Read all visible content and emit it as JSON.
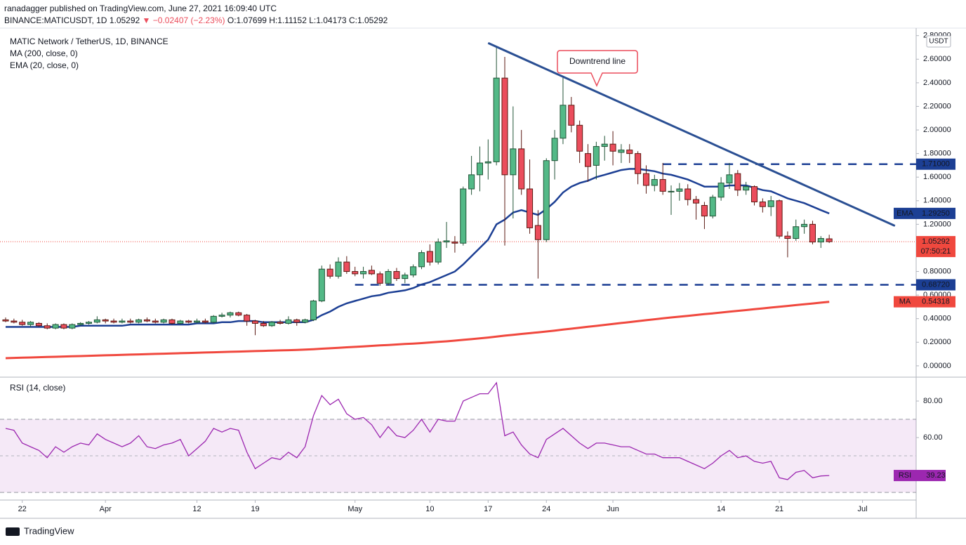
{
  "header": {
    "publisher": "ranadagger published on TradingView.com, June 27, 2021 16:09:40 UTC",
    "symbol": "BINANCE:MATICUSDT, 1D",
    "price": "1.05292",
    "arrow": "▼",
    "change": "−0.02407 (−2.23%)",
    "open": "O:1.07699",
    "high": "H:1.11152",
    "low": "L:1.04173",
    "close": "C:1.05292"
  },
  "footer": "TradingView",
  "chart_data": [
    {
      "type": "candlestick",
      "title": "MATIC Network / TetherUS, 1D, BINANCE",
      "currency": "USDT",
      "up_color": "#53b987",
      "down_color": "#eb4d5c",
      "xlim": [
        -0.675,
        109.45
      ],
      "ylim": [
        -0.09,
        2.84
      ],
      "yticks": [
        {
          "value": 0,
          "label": "0.00000"
        },
        {
          "value": 0.2,
          "label": "0.20000"
        },
        {
          "value": 0.4,
          "label": "0.40000"
        },
        {
          "value": 0.6,
          "label": "0.60000"
        },
        {
          "value": 0.8,
          "label": "0.80000"
        },
        {
          "value": 1,
          "label": "1.00000"
        },
        {
          "value": 1.2,
          "label": "1.20000"
        },
        {
          "value": 1.4,
          "label": "1.40000"
        },
        {
          "value": 1.6,
          "label": "1.60000"
        },
        {
          "value": 1.8,
          "label": "1.80000"
        },
        {
          "value": 2,
          "label": "2.00000"
        },
        {
          "value": 2.2,
          "label": "2.20000"
        },
        {
          "value": 2.4,
          "label": "2.40000"
        },
        {
          "value": 2.6,
          "label": "2.60000"
        },
        {
          "value": 2.8,
          "label": "2.80000"
        }
      ],
      "candles": [
        [
          0.39,
          0.41,
          0.37,
          0.38
        ],
        [
          0.38,
          0.4,
          0.36,
          0.37
        ],
        [
          0.37,
          0.39,
          0.34,
          0.35
        ],
        [
          0.35,
          0.38,
          0.33,
          0.37
        ],
        [
          0.36,
          0.37,
          0.33,
          0.34
        ],
        [
          0.34,
          0.36,
          0.31,
          0.32
        ],
        [
          0.32,
          0.36,
          0.31,
          0.35
        ],
        [
          0.35,
          0.36,
          0.31,
          0.32
        ],
        [
          0.32,
          0.36,
          0.31,
          0.35
        ],
        [
          0.35,
          0.37,
          0.34,
          0.36
        ],
        [
          0.36,
          0.38,
          0.35,
          0.37
        ],
        [
          0.37,
          0.42,
          0.36,
          0.39
        ],
        [
          0.39,
          0.4,
          0.36,
          0.38
        ],
        [
          0.38,
          0.4,
          0.36,
          0.37
        ],
        [
          0.37,
          0.4,
          0.36,
          0.38
        ],
        [
          0.38,
          0.4,
          0.36,
          0.37
        ],
        [
          0.37,
          0.4,
          0.36,
          0.39
        ],
        [
          0.39,
          0.41,
          0.37,
          0.38
        ],
        [
          0.38,
          0.4,
          0.36,
          0.37
        ],
        [
          0.37,
          0.4,
          0.36,
          0.39
        ],
        [
          0.39,
          0.4,
          0.35,
          0.36
        ],
        [
          0.36,
          0.39,
          0.35,
          0.38
        ],
        [
          0.38,
          0.39,
          0.36,
          0.37
        ],
        [
          0.37,
          0.4,
          0.36,
          0.38
        ],
        [
          0.38,
          0.4,
          0.36,
          0.37
        ],
        [
          0.37,
          0.43,
          0.36,
          0.42
        ],
        [
          0.42,
          0.45,
          0.41,
          0.43
        ],
        [
          0.43,
          0.46,
          0.41,
          0.45
        ],
        [
          0.45,
          0.46,
          0.42,
          0.43
        ],
        [
          0.43,
          0.44,
          0.34,
          0.38
        ],
        [
          0.38,
          0.39,
          0.26,
          0.36
        ],
        [
          0.36,
          0.38,
          0.33,
          0.34
        ],
        [
          0.34,
          0.38,
          0.33,
          0.37
        ],
        [
          0.37,
          0.39,
          0.35,
          0.36
        ],
        [
          0.36,
          0.42,
          0.35,
          0.39
        ],
        [
          0.39,
          0.4,
          0.34,
          0.37
        ],
        [
          0.37,
          0.4,
          0.36,
          0.39
        ],
        [
          0.39,
          0.56,
          0.38,
          0.55
        ],
        [
          0.55,
          0.85,
          0.54,
          0.82
        ],
        [
          0.82,
          0.86,
          0.74,
          0.76
        ],
        [
          0.76,
          0.92,
          0.74,
          0.88
        ],
        [
          0.88,
          0.93,
          0.78,
          0.8
        ],
        [
          0.8,
          0.84,
          0.76,
          0.78
        ],
        [
          0.78,
          0.84,
          0.74,
          0.8
        ],
        [
          0.81,
          0.85,
          0.77,
          0.78
        ],
        [
          0.78,
          0.8,
          0.68,
          0.7
        ],
        [
          0.7,
          0.82,
          0.68,
          0.8
        ],
        [
          0.8,
          0.83,
          0.72,
          0.74
        ],
        [
          0.74,
          0.79,
          0.7,
          0.77
        ],
        [
          0.77,
          0.86,
          0.75,
          0.84
        ],
        [
          0.84,
          0.98,
          0.82,
          0.96
        ],
        [
          0.97,
          1.03,
          0.85,
          0.88
        ],
        [
          0.88,
          1.08,
          0.86,
          1.05
        ],
        [
          1.05,
          1.22,
          1.0,
          1.06
        ],
        [
          1.05,
          1.1,
          0.96,
          1.04
        ],
        [
          1.04,
          1.52,
          1.02,
          1.5
        ],
        [
          1.5,
          1.78,
          1.45,
          1.62
        ],
        [
          1.62,
          1.86,
          1.48,
          1.72
        ],
        [
          1.72,
          1.92,
          1.58,
          1.73
        ],
        [
          1.73,
          2.7,
          1.7,
          2.44
        ],
        [
          2.44,
          2.62,
          1.02,
          1.62
        ],
        [
          1.62,
          2.2,
          1.25,
          1.84
        ],
        [
          1.84,
          2.0,
          1.45,
          1.5
        ],
        [
          1.5,
          1.75,
          1.12,
          1.17
        ],
        [
          1.19,
          1.32,
          0.74,
          1.07
        ],
        [
          1.07,
          1.76,
          1.05,
          1.74
        ],
        [
          1.74,
          2.0,
          1.58,
          1.93
        ],
        [
          1.93,
          2.45,
          1.88,
          2.21
        ],
        [
          2.21,
          2.28,
          1.98,
          2.04
        ],
        [
          2.04,
          2.08,
          1.72,
          1.82
        ],
        [
          1.8,
          1.88,
          1.56,
          1.69
        ],
        [
          1.7,
          1.9,
          1.58,
          1.86
        ],
        [
          1.86,
          1.95,
          1.74,
          1.88
        ],
        [
          1.88,
          1.99,
          1.7,
          1.82
        ],
        [
          1.81,
          1.88,
          1.72,
          1.83
        ],
        [
          1.83,
          1.88,
          1.72,
          1.8
        ],
        [
          1.8,
          1.82,
          1.54,
          1.63
        ],
        [
          1.63,
          1.7,
          1.46,
          1.53
        ],
        [
          1.53,
          1.62,
          1.48,
          1.58
        ],
        [
          1.58,
          1.72,
          1.45,
          1.48
        ],
        [
          1.48,
          1.53,
          1.28,
          1.48
        ],
        [
          1.48,
          1.55,
          1.4,
          1.5
        ],
        [
          1.5,
          1.54,
          1.36,
          1.41
        ],
        [
          1.41,
          1.44,
          1.24,
          1.38
        ],
        [
          1.36,
          1.39,
          1.16,
          1.27
        ],
        [
          1.27,
          1.45,
          1.25,
          1.43
        ],
        [
          1.43,
          1.6,
          1.4,
          1.55
        ],
        [
          1.55,
          1.72,
          1.5,
          1.62
        ],
        [
          1.63,
          1.66,
          1.44,
          1.49
        ],
        [
          1.49,
          1.56,
          1.45,
          1.52
        ],
        [
          1.52,
          1.53,
          1.36,
          1.39
        ],
        [
          1.39,
          1.42,
          1.3,
          1.35
        ],
        [
          1.35,
          1.44,
          1.27,
          1.4
        ],
        [
          1.4,
          1.41,
          1.08,
          1.1
        ],
        [
          1.1,
          1.14,
          0.92,
          1.08
        ],
        [
          1.08,
          1.24,
          1.06,
          1.18
        ],
        [
          1.18,
          1.24,
          1.12,
          1.2
        ],
        [
          1.2,
          1.23,
          1.03,
          1.05
        ],
        [
          1.05,
          1.1,
          1.0,
          1.08
        ],
        [
          1.07699,
          1.11152,
          1.04173,
          1.05292
        ]
      ],
      "series": [
        {
          "name": "MA (200, close, 0)",
          "tag": "MA",
          "last_label": "0.54318",
          "color": "#f0483e",
          "values": [
            0.065,
            0.067,
            0.069,
            0.071,
            0.073,
            0.075,
            0.077,
            0.079,
            0.081,
            0.083,
            0.085,
            0.087,
            0.089,
            0.091,
            0.093,
            0.095,
            0.097,
            0.099,
            0.101,
            0.103,
            0.105,
            0.107,
            0.109,
            0.111,
            0.113,
            0.115,
            0.117,
            0.119,
            0.121,
            0.123,
            0.125,
            0.127,
            0.129,
            0.131,
            0.133,
            0.135,
            0.138,
            0.141,
            0.145,
            0.149,
            0.153,
            0.157,
            0.161,
            0.165,
            0.169,
            0.173,
            0.177,
            0.181,
            0.185,
            0.189,
            0.193,
            0.198,
            0.203,
            0.208,
            0.214,
            0.22,
            0.226,
            0.233,
            0.24,
            0.248,
            0.256,
            0.263,
            0.27,
            0.277,
            0.284,
            0.291,
            0.299,
            0.307,
            0.315,
            0.323,
            0.331,
            0.339,
            0.347,
            0.355,
            0.363,
            0.371,
            0.379,
            0.387,
            0.395,
            0.403,
            0.41,
            0.417,
            0.424,
            0.431,
            0.438,
            0.445,
            0.452,
            0.459,
            0.466,
            0.473,
            0.48,
            0.487,
            0.494,
            0.501,
            0.508,
            0.515,
            0.522,
            0.529,
            0.536,
            0.54318
          ]
        },
        {
          "name": "EMA (20, close, 0)",
          "tag": "EMA",
          "last_label": "1.29250",
          "color": "#1c3f94",
          "values": [
            0.33,
            0.33,
            0.33,
            0.33,
            0.33,
            0.33,
            0.33,
            0.33,
            0.33,
            0.34,
            0.34,
            0.34,
            0.34,
            0.34,
            0.34,
            0.35,
            0.35,
            0.35,
            0.35,
            0.35,
            0.35,
            0.35,
            0.35,
            0.36,
            0.36,
            0.36,
            0.37,
            0.37,
            0.38,
            0.38,
            0.38,
            0.37,
            0.37,
            0.37,
            0.37,
            0.37,
            0.37,
            0.39,
            0.43,
            0.46,
            0.5,
            0.53,
            0.55,
            0.57,
            0.59,
            0.6,
            0.62,
            0.63,
            0.64,
            0.66,
            0.69,
            0.71,
            0.74,
            0.77,
            0.8,
            0.86,
            0.93,
            1.0,
            1.07,
            1.2,
            1.24,
            1.3,
            1.32,
            1.3,
            1.28,
            1.33,
            1.39,
            1.47,
            1.52,
            1.55,
            1.57,
            1.6,
            1.62,
            1.64,
            1.66,
            1.67,
            1.67,
            1.66,
            1.65,
            1.63,
            1.62,
            1.6,
            1.58,
            1.55,
            1.52,
            1.52,
            1.52,
            1.53,
            1.53,
            1.53,
            1.51,
            1.49,
            1.48,
            1.45,
            1.42,
            1.4,
            1.38,
            1.35,
            1.32,
            1.2925
          ]
        }
      ],
      "levels": [
        {
          "value": 1.71,
          "label": "1.71000",
          "from": 79,
          "color": "#1c3f94"
        },
        {
          "value": 0.6872,
          "label": "0.68720",
          "from": 42,
          "color": "#1c3f94"
        }
      ],
      "trendline": {
        "x": [
          58.0,
          106.9
        ],
        "y": [
          2.737,
          1.187
        ],
        "color": "#2a4f93"
      },
      "annotation": "Downtrend line",
      "last": {
        "value": 1.05292,
        "label": "1.05292",
        "countdown": "07:50:21",
        "color": "#f0483e"
      }
    },
    {
      "type": "line",
      "title": "RSI (14, close)",
      "tag": "RSI",
      "last_label": "39.23",
      "color": "#9c27b0",
      "xlim": [
        -0.675,
        109.45
      ],
      "ylim": [
        25.8,
        92.7
      ],
      "yticks": [
        {
          "value": 60,
          "label": "60.00"
        },
        {
          "value": 80,
          "label": "80.00"
        }
      ],
      "band": [
        30,
        70
      ],
      "midline": 50,
      "xticks": [
        {
          "value": 2,
          "label": "22"
        },
        {
          "value": 12,
          "label": "Apr"
        },
        {
          "value": 23,
          "label": "12"
        },
        {
          "value": 30,
          "label": "19"
        },
        {
          "value": 42,
          "label": "May"
        },
        {
          "value": 51,
          "label": "10"
        },
        {
          "value": 58,
          "label": "17"
        },
        {
          "value": 65,
          "label": "24"
        },
        {
          "value": 73,
          "label": "Jun"
        },
        {
          "value": 86,
          "label": "14"
        },
        {
          "value": 93,
          "label": "21"
        },
        {
          "value": 103,
          "label": "Jul"
        }
      ],
      "values": [
        65,
        64,
        57,
        55,
        53,
        49,
        55,
        52,
        55,
        57,
        56,
        62,
        59,
        57,
        55,
        57,
        61,
        55,
        54,
        56,
        57,
        59,
        50,
        54,
        58,
        65,
        63,
        65,
        64,
        52,
        43,
        46,
        49,
        48,
        52,
        49,
        55,
        72,
        83,
        78,
        81,
        73,
        70,
        71,
        67,
        60,
        66,
        61,
        60,
        64,
        70,
        63,
        70,
        69,
        69,
        80,
        82,
        84,
        84,
        90,
        61,
        63,
        56,
        51,
        49,
        59,
        62,
        65,
        61,
        57,
        54,
        57,
        57,
        56,
        55,
        55,
        53,
        51,
        51,
        49,
        49,
        49,
        47,
        45,
        43,
        46,
        50,
        53,
        49,
        50,
        47,
        46,
        47,
        38,
        37,
        41,
        42,
        38,
        39,
        39.23
      ]
    }
  ]
}
